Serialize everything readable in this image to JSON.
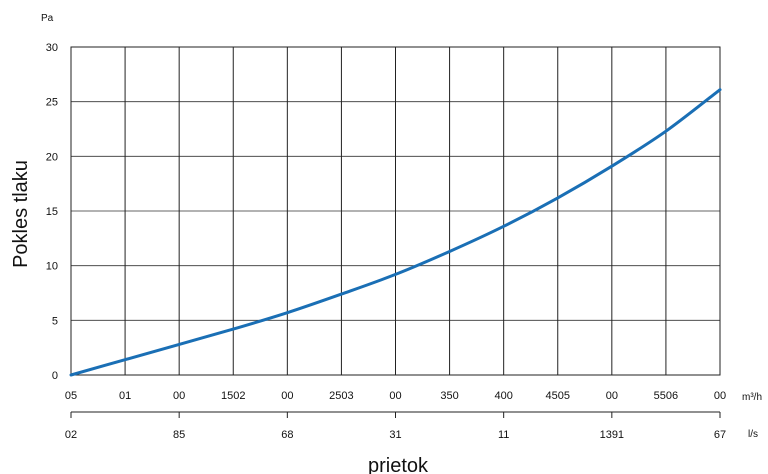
{
  "chart_data": {
    "type": "line",
    "ylabel": "Pokles tlaku",
    "yunit": "Pa",
    "xlabel": "prietok",
    "ylim": [
      0,
      30
    ],
    "yticks": [
      0,
      5,
      10,
      15,
      20,
      25,
      30
    ],
    "grid": true,
    "x_primary": {
      "unit": "m³/h",
      "tick_labels": [
        "05",
        "01",
        "00",
        "1502",
        "00",
        "2503",
        "00",
        "350",
        "400",
        "4505",
        "00",
        "5506",
        "00"
      ]
    },
    "x_secondary": {
      "unit": "l/s",
      "tick_labels": [
        "02",
        "85",
        "68",
        "31",
        "11",
        "1391",
        "67"
      ]
    },
    "series": [
      {
        "color": "#1a6fb5",
        "x_index": [
          0,
          1,
          2,
          3,
          4,
          5,
          6,
          7,
          8,
          9,
          10,
          11,
          12
        ],
        "y": [
          0.0,
          1.4,
          2.8,
          4.2,
          5.7,
          7.4,
          9.2,
          11.3,
          13.6,
          16.2,
          19.1,
          22.3,
          26.1
        ]
      }
    ]
  }
}
